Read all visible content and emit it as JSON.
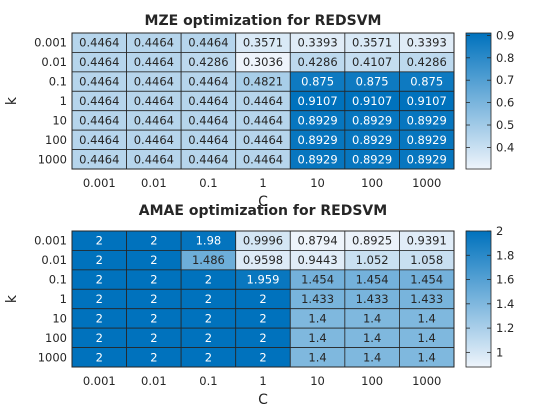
{
  "chart_data": [
    {
      "type": "heatmap",
      "title": "MZE optimization for REDSVM",
      "xlabel": "C",
      "ylabel": "k",
      "x_categories": [
        "0.001",
        "0.01",
        "0.1",
        "1",
        "10",
        "100",
        "1000"
      ],
      "y_categories": [
        "0.001",
        "0.01",
        "0.1",
        "1",
        "10",
        "100",
        "1000"
      ],
      "cell_labels": [
        [
          "0.4464",
          "0.4464",
          "0.4464",
          "0.3571",
          "0.3393",
          "0.3571",
          "0.3393"
        ],
        [
          "0.4464",
          "0.4464",
          "0.4286",
          "0.3036",
          "0.4286",
          "0.4107",
          "0.4286"
        ],
        [
          "0.4464",
          "0.4464",
          "0.4464",
          "0.4821",
          "0.875",
          "0.875",
          "0.875"
        ],
        [
          "0.4464",
          "0.4464",
          "0.4464",
          "0.4464",
          "0.9107",
          "0.9107",
          "0.9107"
        ],
        [
          "0.4464",
          "0.4464",
          "0.4464",
          "0.4464",
          "0.8929",
          "0.8929",
          "0.8929"
        ],
        [
          "0.4464",
          "0.4464",
          "0.4464",
          "0.4464",
          "0.8929",
          "0.8929",
          "0.8929"
        ],
        [
          "0.4464",
          "0.4464",
          "0.4464",
          "0.4464",
          "0.8929",
          "0.8929",
          "0.8929"
        ]
      ],
      "colorbar": {
        "min": 0.3036,
        "max": 0.9107,
        "ticks": [
          "0.4",
          "0.5",
          "0.6",
          "0.7",
          "0.8",
          "0.9"
        ]
      },
      "colors": {
        "low": "#eef4fb",
        "high": "#0072bd"
      }
    },
    {
      "type": "heatmap",
      "title": "AMAE optimization for REDSVM",
      "xlabel": "C",
      "ylabel": "k",
      "x_categories": [
        "0.001",
        "0.01",
        "0.1",
        "1",
        "10",
        "100",
        "1000"
      ],
      "y_categories": [
        "0.001",
        "0.01",
        "0.1",
        "1",
        "10",
        "100",
        "1000"
      ],
      "cell_labels": [
        [
          "2",
          "2",
          "1.98",
          "0.9996",
          "0.8794",
          "0.8925",
          "0.9391"
        ],
        [
          "2",
          "2",
          "1.486",
          "0.9598",
          "0.9443",
          "1.052",
          "1.058"
        ],
        [
          "2",
          "2",
          "2",
          "1.959",
          "1.454",
          "1.454",
          "1.454"
        ],
        [
          "2",
          "2",
          "2",
          "2",
          "1.433",
          "1.433",
          "1.433"
        ],
        [
          "2",
          "2",
          "2",
          "2",
          "1.4",
          "1.4",
          "1.4"
        ],
        [
          "2",
          "2",
          "2",
          "2",
          "1.4",
          "1.4",
          "1.4"
        ],
        [
          "2",
          "2",
          "2",
          "2",
          "1.4",
          "1.4",
          "1.4"
        ]
      ],
      "colorbar": {
        "min": 0.8794,
        "max": 2,
        "ticks": [
          "1",
          "1.2",
          "1.4",
          "1.6",
          "1.8",
          "2"
        ]
      },
      "colors": {
        "low": "#eef4fb",
        "high": "#0072bd"
      }
    }
  ]
}
